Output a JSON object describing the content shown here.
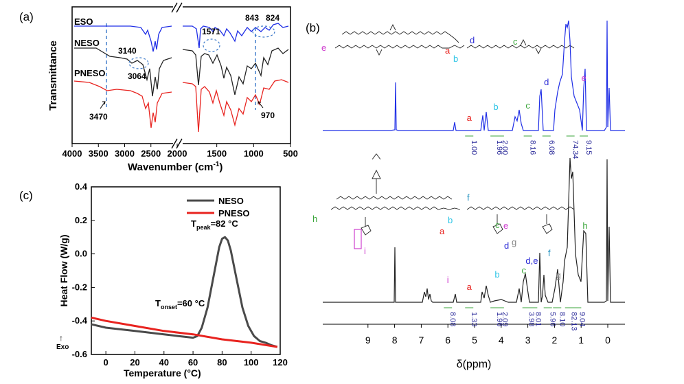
{
  "panels": {
    "a": "(a)",
    "b": "(b)",
    "c": "(c)"
  },
  "colors": {
    "blue": "#1f2ee6",
    "black": "#222222",
    "red": "#e8231f",
    "dash": "#3a78c9",
    "a": "#e8231f",
    "b": "#2ec5e6",
    "c": "#3aa63a",
    "d": "#2b2bd6",
    "e": "#cf40cf",
    "f": "#1e8fbf",
    "g": "#888888",
    "h": "#3aa63a",
    "i": "#cf40cf"
  },
  "chart_data": [
    {
      "type": "line",
      "id": "ftir",
      "xlabel": "Wavenumber (cm",
      "xlabel_sup": "-1",
      "xlabel_end": ")",
      "ylabel": "Transmittance",
      "xticks": [
        "4000",
        "3500",
        "3000",
        "2500",
        "2000",
        "1500",
        "1000",
        "500"
      ],
      "xtick_values": [
        4000,
        3500,
        3000,
        2500,
        2000,
        1500,
        1000,
        500
      ],
      "axis_break": "//",
      "series": [
        {
          "name": "ESO",
          "color": "#1f2ee6"
        },
        {
          "name": "NESO",
          "color": "#222222"
        },
        {
          "name": "PNESO",
          "color": "#e8231f"
        }
      ],
      "annotations": [
        "3140",
        "3064",
        "1571",
        "843",
        "824",
        "3470",
        "970"
      ]
    },
    {
      "type": "line",
      "id": "nmr",
      "xlabel": "δ(ppm)",
      "xticks": [
        "9",
        "8",
        "7",
        "6",
        "5",
        "4",
        "3",
        "2",
        "1",
        "0"
      ],
      "xtick_values": [
        9,
        8,
        7,
        6,
        5,
        4,
        3,
        2,
        1,
        0
      ],
      "spectra": [
        {
          "color": "#1f2ee6",
          "peak_labels": [
            {
              "letter": "a",
              "ppm": 5.2
            },
            {
              "letter": "b",
              "ppm": 4.2
            },
            {
              "letter": "c",
              "ppm": 3.0
            },
            {
              "letter": "d",
              "ppm": 2.3
            },
            {
              "letter": "e",
              "ppm": 0.9
            }
          ],
          "integrals": [
            {
              "ppm": 5.2,
              "value": "1.00"
            },
            {
              "ppm": 4.25,
              "value": "1.96"
            },
            {
              "ppm": 4.05,
              "value": "2.00"
            },
            {
              "ppm": 3.0,
              "value": "8.16"
            },
            {
              "ppm": 2.3,
              "value": "6.08"
            },
            {
              "ppm": 1.4,
              "value": "74.34"
            },
            {
              "ppm": 0.9,
              "value": "9.15"
            }
          ]
        },
        {
          "color": "#222222",
          "peak_labels": [
            {
              "letter": "i",
              "ppm": 6.0
            },
            {
              "letter": "a",
              "ppm": 5.2
            },
            {
              "letter": "b",
              "ppm": 4.15
            },
            {
              "letter": "c",
              "ppm": 3.15
            },
            {
              "letter": "d,e",
              "ppm": 2.85
            },
            {
              "letter": "f",
              "ppm": 2.2
            },
            {
              "letter": "g",
              "ppm": 1.85
            },
            {
              "letter": "h",
              "ppm": 0.85
            }
          ],
          "integrals": [
            {
              "ppm": 6.0,
              "value": "8.08"
            },
            {
              "ppm": 5.2,
              "value": "1.33"
            },
            {
              "ppm": 4.25,
              "value": "1.96"
            },
            {
              "ppm": 4.05,
              "value": "2.09"
            },
            {
              "ppm": 3.05,
              "value": "3.98"
            },
            {
              "ppm": 2.8,
              "value": "8.01"
            },
            {
              "ppm": 2.25,
              "value": "5.96"
            },
            {
              "ppm": 1.9,
              "value": "8.10"
            },
            {
              "ppm": 1.45,
              "value": "82.13"
            },
            {
              "ppm": 1.15,
              "value": "9.04"
            }
          ]
        }
      ],
      "structure_labels": [
        "e",
        "a",
        "b",
        "c",
        "d",
        "h",
        "a",
        "b",
        "f",
        "c",
        "e",
        "g",
        "d",
        "i"
      ]
    },
    {
      "type": "line",
      "id": "dsc",
      "xlabel": "Temperature (",
      "xlabel_unit": "°C)",
      "ylabel": "Heat Flow (W/g)",
      "exo": "Exo",
      "xlim": [
        -10,
        120
      ],
      "ylim": [
        -0.6,
        0.4
      ],
      "xticks": [
        "0",
        "20",
        "40",
        "60",
        "80",
        "100",
        "120"
      ],
      "xtick_values": [
        0,
        20,
        40,
        60,
        80,
        100,
        120
      ],
      "yticks": [
        "0.4",
        "0.2",
        "0.0",
        "-0.2",
        "-0.4",
        "-0.6"
      ],
      "ytick_values": [
        0.4,
        0.2,
        0.0,
        -0.2,
        -0.4,
        -0.6
      ],
      "series": [
        {
          "name": "NESO",
          "color": "#4a4a4a",
          "x": [
            -10,
            0,
            10,
            20,
            30,
            40,
            50,
            60,
            63,
            66,
            70,
            74,
            78,
            80,
            82,
            84,
            86,
            90,
            94,
            98,
            102,
            106,
            110,
            114,
            118
          ],
          "y": [
            -0.42,
            -0.44,
            -0.45,
            -0.46,
            -0.47,
            -0.48,
            -0.49,
            -0.5,
            -0.49,
            -0.44,
            -0.32,
            -0.14,
            0.04,
            0.09,
            0.1,
            0.08,
            0.02,
            -0.15,
            -0.32,
            -0.43,
            -0.49,
            -0.52,
            -0.53,
            -0.545,
            -0.555
          ]
        },
        {
          "name": "PNESO",
          "color": "#e8231f",
          "x": [
            -10,
            0,
            20,
            40,
            60,
            80,
            100,
            118
          ],
          "y": [
            -0.38,
            -0.4,
            -0.43,
            -0.46,
            -0.48,
            -0.51,
            -0.53,
            -0.555
          ]
        }
      ],
      "annotations": {
        "peak": {
          "main": "T",
          "sub": "peak",
          "rest": "=82 °C",
          "x": 82,
          "y": 0.1
        },
        "onset": {
          "main": "T",
          "sub": "onset",
          "rest": "=60 °C",
          "x": 60,
          "y": -0.49
        }
      }
    }
  ]
}
